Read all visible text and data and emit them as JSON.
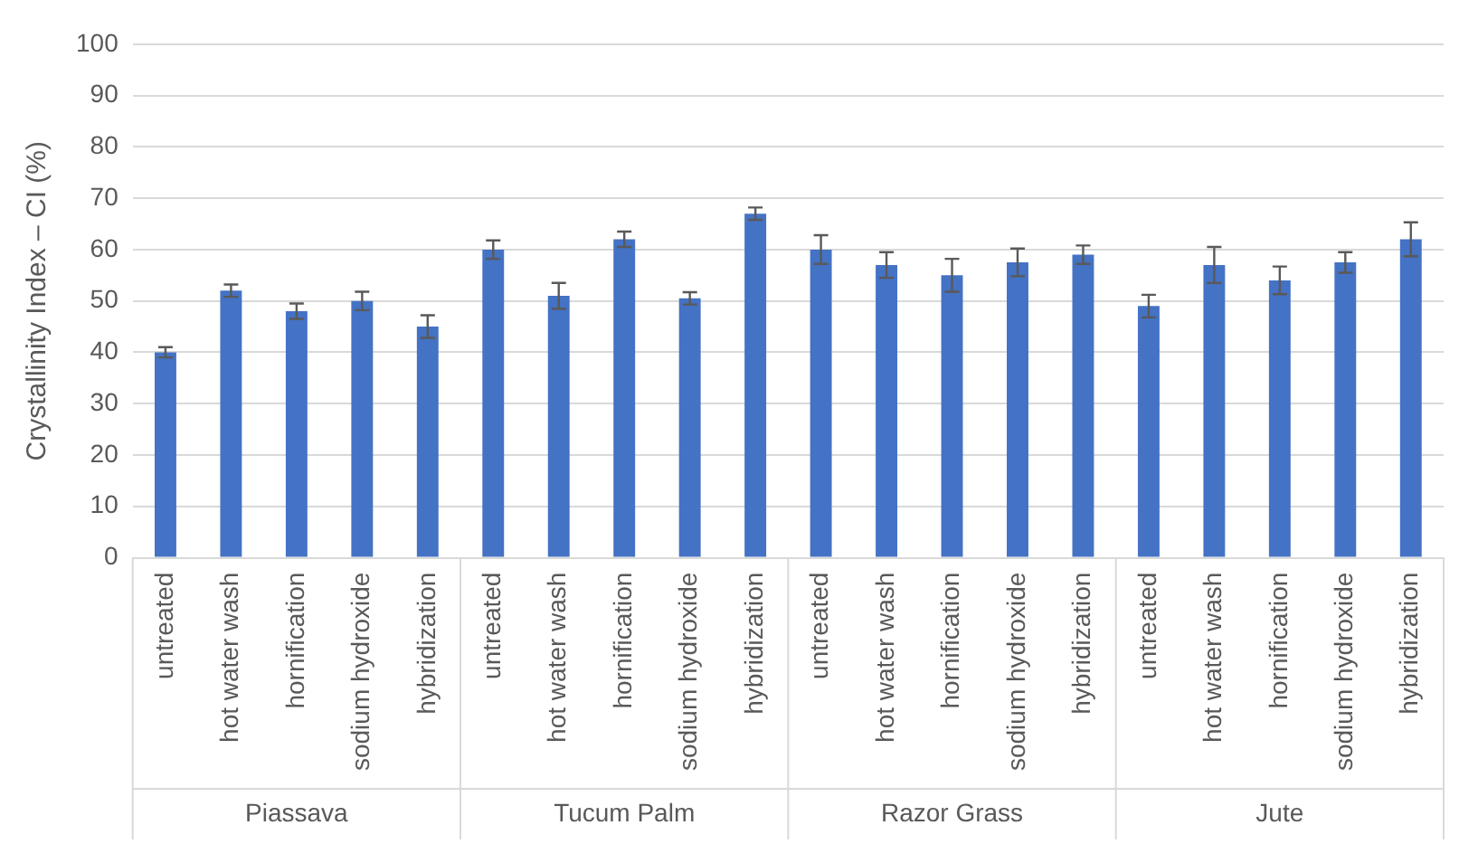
{
  "chart_data": {
    "type": "bar",
    "ylabel": "Crystallinity Index – CI (%)",
    "categories": [
      "untreated",
      "hot water wash",
      "hornification",
      "sodium hydroxide",
      "hybridization",
      "untreated",
      "hot water wash",
      "hornification",
      "sodium hydroxide",
      "hybridization",
      "untreated",
      "hot water wash",
      "hornification",
      "sodium hydroxide",
      "hybridization",
      "untreated",
      "hot water wash",
      "hornification",
      "sodium hydroxide",
      "hybridization"
    ],
    "values": [
      40,
      52,
      48,
      50,
      45,
      60,
      51,
      62,
      50.5,
      67,
      60,
      57,
      55,
      57.5,
      59,
      49,
      57,
      54,
      57.5,
      62
    ],
    "errors": [
      1,
      1.2,
      1.5,
      1.8,
      2.2,
      1.8,
      2.5,
      1.5,
      1.2,
      1.2,
      2.8,
      2.5,
      3.2,
      2.7,
      1.8,
      2.2,
      3.5,
      2.7,
      2,
      3.3
    ],
    "color": "#4472c4",
    "ylim": [
      0,
      100
    ],
    "yticks": [
      0,
      10,
      20,
      30,
      40,
      50,
      60,
      70,
      80,
      90,
      100
    ],
    "grid": "y",
    "legend": false,
    "annotations": [
      "Piassava",
      "Tucum Palm",
      "Razor Grass",
      "Jute"
    ]
  }
}
